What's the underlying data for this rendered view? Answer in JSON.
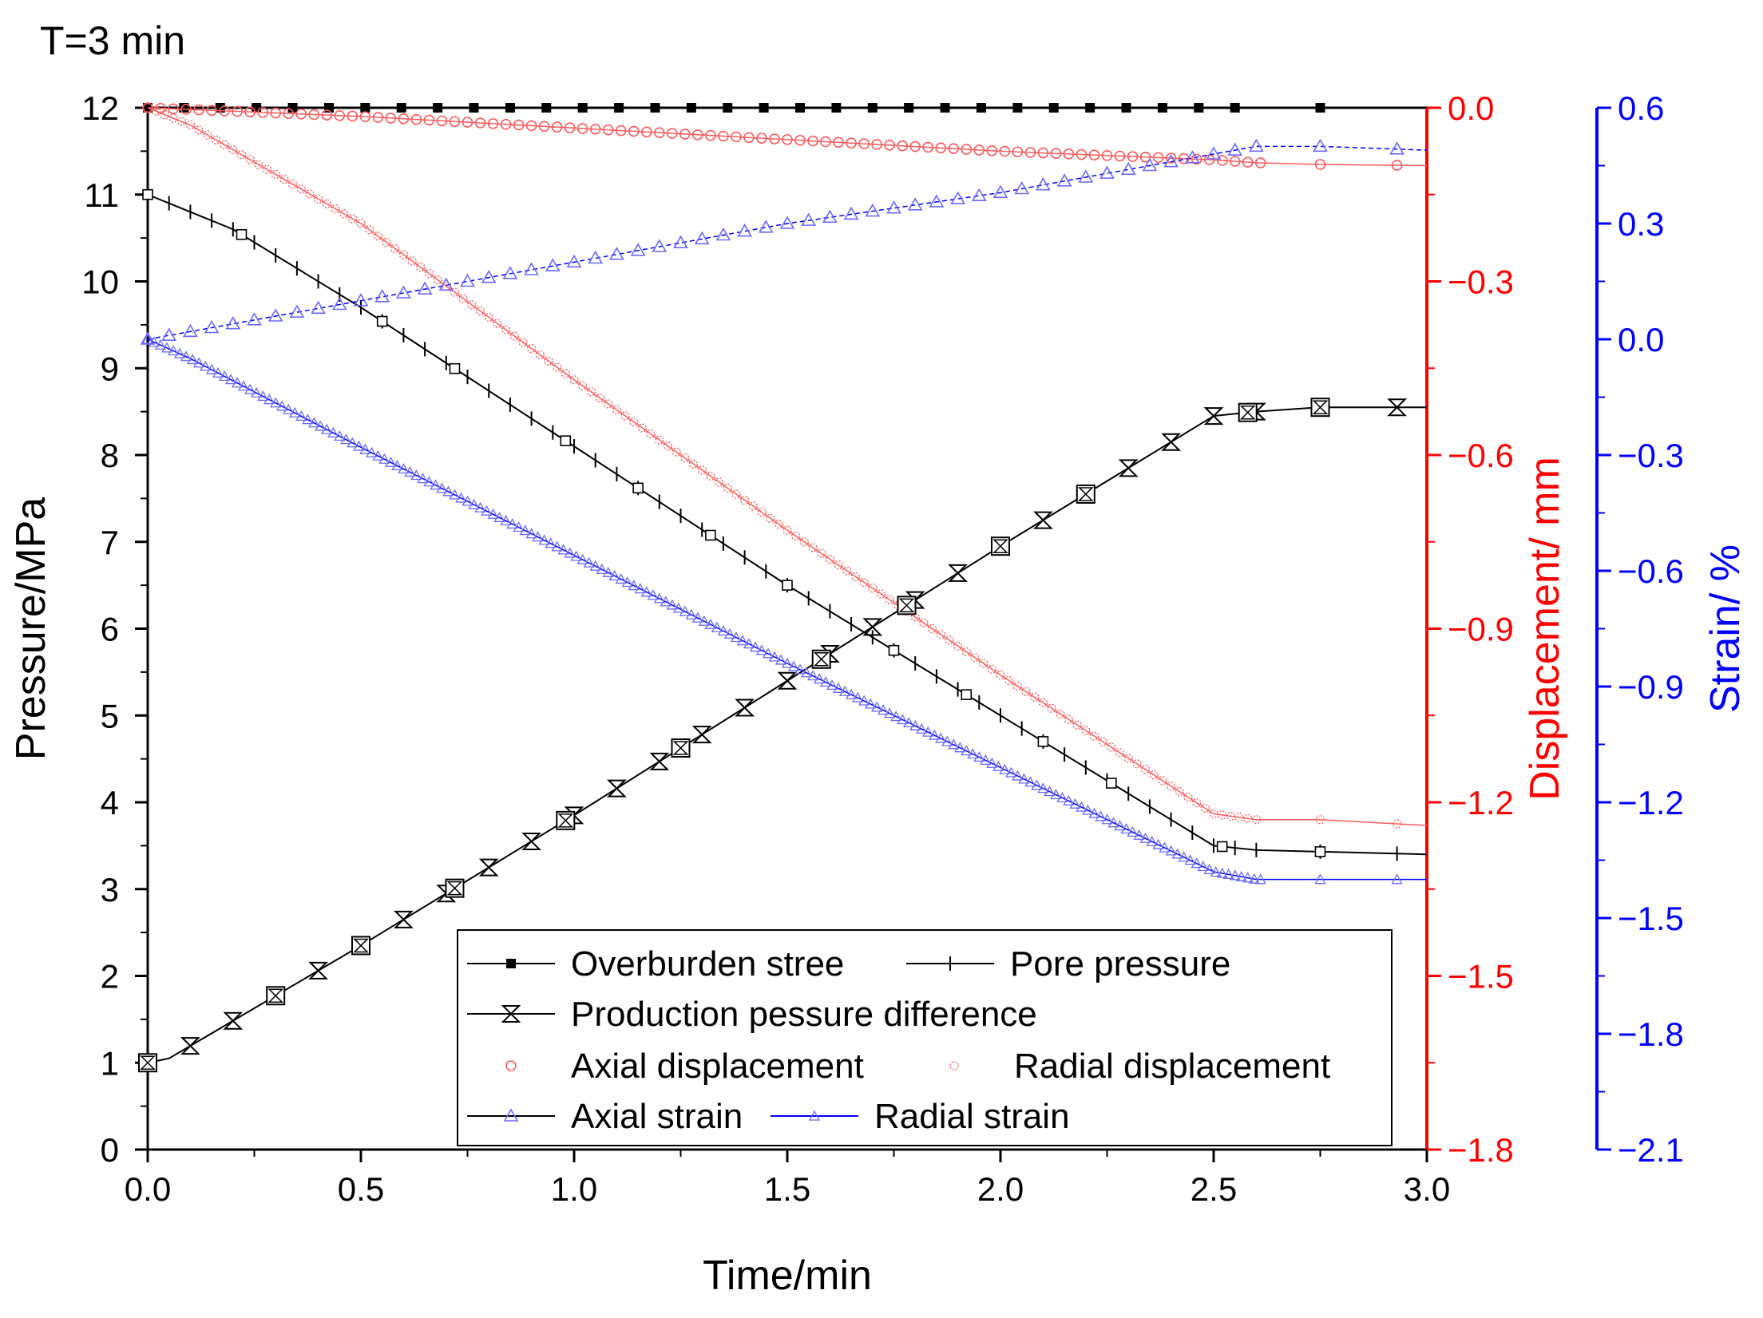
{
  "chart_data": {
    "type": "line",
    "title": "T=3 min",
    "xlabel": "Time/min",
    "y_left_label": "Pressure/MPa",
    "y_disp_label": "Displacement/ mm",
    "y_strain_label": "Strain/ %",
    "xlim": [
      0,
      3
    ],
    "ylim_pressure": [
      0,
      12
    ],
    "ylim_displacement": [
      -1.8,
      0
    ],
    "ylim_strain": [
      -2.1,
      0.6
    ],
    "x_ticks": [
      0,
      0.5,
      1,
      1.5,
      2,
      2.5,
      3
    ],
    "x_tick_labels": [
      "0.0",
      "0.5",
      "1.0",
      "1.5",
      "2.0",
      "2.5",
      "3.0"
    ],
    "pressure_ticks": [
      0,
      1,
      2,
      3,
      4,
      5,
      6,
      7,
      8,
      9,
      10,
      11,
      12
    ],
    "pressure_tick_labels": [
      "0",
      "1",
      "2",
      "3",
      "4",
      "5",
      "6",
      "7",
      "8",
      "9",
      "10",
      "11",
      "12"
    ],
    "displacement_ticks": [
      0,
      -0.3,
      -0.6,
      -0.9,
      -1.2,
      -1.5,
      -1.8
    ],
    "displacement_tick_labels": [
      "0.0",
      "−0.3",
      "−0.6",
      "−0.9",
      "−1.2",
      "−1.5",
      "−1.8"
    ],
    "strain_ticks": [
      0.6,
      0.3,
      0,
      -0.3,
      -0.6,
      -0.9,
      -1.2,
      -1.5,
      -1.8,
      -2.1
    ],
    "strain_tick_labels": [
      "0.6",
      "0.3",
      "0.0",
      "−0.3",
      "−0.6",
      "−0.9",
      "−1.2",
      "−1.5",
      "−1.8",
      "−2.1"
    ],
    "colors": {
      "pressure": "#000000",
      "displacement": "#ff0000",
      "strain": "#0000ff",
      "marker_red": "#ff5a5a",
      "marker_blue": "#6a6aff"
    },
    "series": [
      {
        "name": "Overburden stree",
        "axis": "pressure",
        "color": "#000000",
        "marker": "square-filled",
        "x": [
          0,
          3
        ],
        "y": [
          12,
          12
        ]
      },
      {
        "name": "Pore pressure",
        "axis": "pressure",
        "color": "#000000",
        "marker": "vbar",
        "x": [
          0,
          0.2,
          0.5,
          1.0,
          1.5,
          2.0,
          2.5,
          2.6,
          3.0
        ],
        "y": [
          11,
          10.6,
          9.7,
          8.1,
          6.5,
          5.0,
          3.5,
          3.45,
          3.4
        ]
      },
      {
        "name": "Production pessure difference",
        "axis": "pressure",
        "color": "#000000",
        "marker": "hourglass",
        "x": [
          0,
          0.05,
          0.5,
          1.0,
          1.5,
          2.0,
          2.5,
          2.6,
          2.75,
          3.0
        ],
        "y": [
          1.0,
          1.05,
          2.35,
          3.85,
          5.4,
          6.95,
          8.45,
          8.5,
          8.55,
          8.55
        ]
      },
      {
        "name": "Axial displacement",
        "axis": "displacement",
        "color": "#ff0000",
        "marker": "circle",
        "x": [
          0,
          0.5,
          1.0,
          1.5,
          2.0,
          2.5,
          2.6,
          2.75,
          3.0
        ],
        "y": [
          0,
          -0.015,
          -0.035,
          -0.055,
          -0.075,
          -0.09,
          -0.095,
          -0.098,
          -0.1
        ]
      },
      {
        "name": "Radial displacement",
        "axis": "displacement",
        "color": "#ff0000",
        "marker": "circle-dotted",
        "x": [
          0,
          0.1,
          0.5,
          1.0,
          1.5,
          2.0,
          2.5,
          2.6,
          2.75,
          3.0
        ],
        "y": [
          0,
          -0.03,
          -0.2,
          -0.47,
          -0.73,
          -0.98,
          -1.22,
          -1.23,
          -1.23,
          -1.24
        ]
      },
      {
        "name": "Axial strain",
        "axis": "strain",
        "color": "#0000ff",
        "marker": "triangle",
        "x": [
          0,
          0.5,
          1.0,
          1.5,
          2.0,
          2.5,
          2.6,
          2.75,
          3.0
        ],
        "y": [
          0,
          0.1,
          0.2,
          0.3,
          0.38,
          0.48,
          0.5,
          0.5,
          0.49
        ]
      },
      {
        "name": "Radial strain",
        "axis": "strain",
        "color": "#0000ff",
        "marker": "triangle-small",
        "x": [
          0,
          0.1,
          0.5,
          1.0,
          1.5,
          2.0,
          2.5,
          2.6,
          2.75,
          3.0
        ],
        "y": [
          0,
          -0.05,
          -0.28,
          -0.56,
          -0.84,
          -1.11,
          -1.38,
          -1.4,
          -1.4,
          -1.4
        ]
      }
    ],
    "legend": {
      "position": "bottom-center",
      "items": [
        "Overburden stree",
        "Pore pressure",
        "Production pessure difference",
        "Axial displacement",
        "Radial displacement",
        "Axial strain",
        "Radial strain"
      ]
    }
  }
}
